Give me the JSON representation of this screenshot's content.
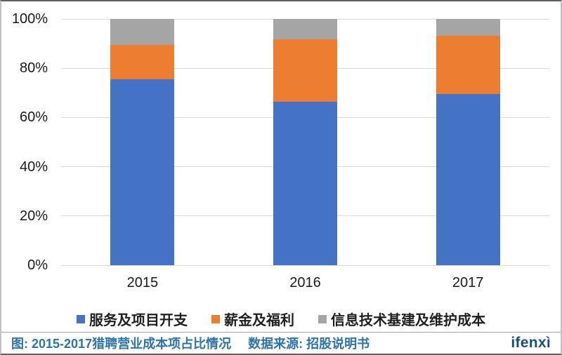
{
  "chart_data": {
    "type": "bar",
    "subtype": "stacked-percent",
    "categories": [
      "2015",
      "2016",
      "2017"
    ],
    "series": [
      {
        "name": "服务及项目开支",
        "color": "#4472C4",
        "values": [
          75.4,
          66.4,
          69.5
        ]
      },
      {
        "name": "薪金及福利",
        "color": "#ED7D31",
        "values": [
          14.1,
          25.4,
          23.7
        ]
      },
      {
        "name": "信息技术基建及维护成本",
        "color": "#A5A5A5",
        "values": [
          10.5,
          8.2,
          6.8
        ]
      }
    ],
    "y_ticks": [
      {
        "label": "0%",
        "value": 0
      },
      {
        "label": "20%",
        "value": 20
      },
      {
        "label": "40%",
        "value": 40
      },
      {
        "label": "60%",
        "value": 60
      },
      {
        "label": "80%",
        "value": 80
      },
      {
        "label": "100%",
        "value": 100
      }
    ],
    "ylim": [
      0,
      100
    ],
    "grid": true,
    "gridline_color": "#d9d9d9",
    "legend_position": "bottom",
    "title": "",
    "xlabel": "",
    "ylabel": ""
  },
  "footer": {
    "caption": "图: 2015-2017猎聘营业成本项占比情况",
    "source_label": "数据来源: 招股说明书",
    "logo": "ifenxì",
    "caption_color": "#2E74A8",
    "logo_color": "#1C4F78"
  }
}
